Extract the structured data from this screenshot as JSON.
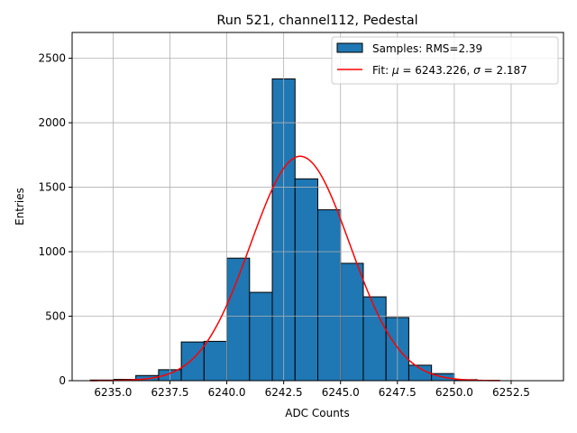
{
  "chart_data": {
    "type": "bar",
    "title": "Run 521, channel112, Pedestal",
    "xlabel": "ADC Counts",
    "ylabel": "Entries",
    "xlim": [
      6233.2,
      6254.8
    ],
    "ylim": [
      0,
      2700
    ],
    "grid": true,
    "x_ticks": [
      6235.0,
      6237.5,
      6240.0,
      6242.5,
      6245.0,
      6247.5,
      6250.0,
      6252.5
    ],
    "x_tick_labels": [
      "6235.0",
      "6237.5",
      "6240.0",
      "6242.5",
      "6245.0",
      "6247.5",
      "6250.0",
      "6252.5"
    ],
    "y_ticks": [
      0,
      500,
      1000,
      1500,
      2000,
      2500
    ],
    "y_tick_labels": [
      "0",
      "500",
      "1000",
      "1500",
      "2000",
      "2500"
    ],
    "histogram": {
      "name": "Samples: RMS=2.39",
      "color": "#1f77b4",
      "edge_color": "#000000",
      "bin_edges": [
        6234,
        6235,
        6236,
        6237,
        6238,
        6239,
        6240,
        6241,
        6242,
        6243,
        6244,
        6245,
        6246,
        6247,
        6248,
        6249,
        6250,
        6251,
        6252
      ],
      "counts": [
        5,
        10,
        40,
        85,
        300,
        305,
        950,
        685,
        2340,
        1565,
        1325,
        910,
        650,
        490,
        120,
        55,
        8,
        2
      ]
    },
    "fit": {
      "name": "Fit: μ = 6243.226, σ = 2.187",
      "label_prefix": "Fit: ",
      "mu_symbol": "μ",
      "mu_text": " = 6243.226, ",
      "sigma_symbol": "σ",
      "sigma_text": " = 2.187",
      "color": "#ff0000",
      "mu": 6243.226,
      "sigma": 2.187,
      "amplitude": 1740,
      "x_range": [
        6234,
        6252
      ]
    },
    "legend_position": "top-right"
  }
}
